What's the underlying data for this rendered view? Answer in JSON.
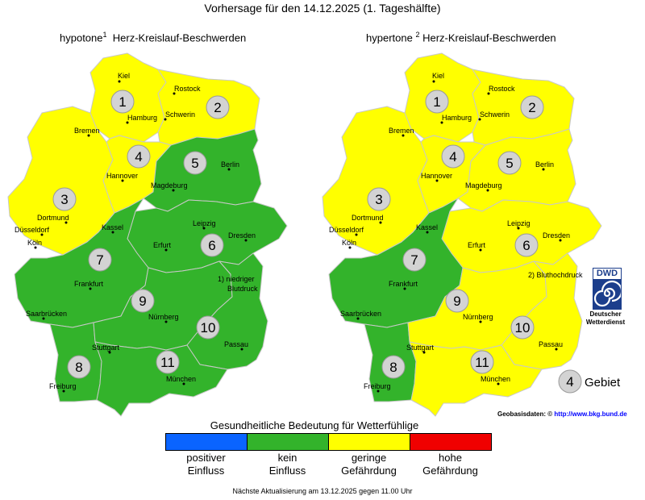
{
  "header": {
    "title": "Vorhersage für den 14.12.2025 (1. Tageshälfte)"
  },
  "maps": [
    {
      "title_prefix": "hypotone",
      "footnote": "1",
      "title_suffix": "Herz-Kreislauf-Beschwerden",
      "note_line1": "1) niedriger",
      "note_line2": "Blutdruck",
      "regions": [
        {
          "id": "1",
          "level": "geringe Gefährdung"
        },
        {
          "id": "2",
          "level": "geringe Gefährdung"
        },
        {
          "id": "3",
          "level": "geringe Gefährdung"
        },
        {
          "id": "4",
          "level": "geringe Gefährdung"
        },
        {
          "id": "5",
          "level": "kein Einfluss"
        },
        {
          "id": "6",
          "level": "kein Einfluss"
        },
        {
          "id": "7",
          "level": "kein Einfluss"
        },
        {
          "id": "8",
          "level": "kein Einfluss"
        },
        {
          "id": "9",
          "level": "kein Einfluss"
        },
        {
          "id": "10",
          "level": "kein Einfluss"
        },
        {
          "id": "11",
          "level": "kein Einfluss"
        }
      ]
    },
    {
      "title_prefix": "hypertone",
      "footnote": "2",
      "title_suffix": "Herz-Kreislauf-Beschwerden",
      "note_line1": "2) Bluthochdruck",
      "note_line2": "",
      "regions": [
        {
          "id": "1",
          "level": "geringe Gefährdung"
        },
        {
          "id": "2",
          "level": "geringe Gefährdung"
        },
        {
          "id": "3",
          "level": "geringe Gefährdung"
        },
        {
          "id": "4",
          "level": "geringe Gefährdung"
        },
        {
          "id": "5",
          "level": "geringe Gefährdung"
        },
        {
          "id": "6",
          "level": "geringe Gefährdung"
        },
        {
          "id": "7",
          "level": "kein Einfluss"
        },
        {
          "id": "8",
          "level": "kein Einfluss"
        },
        {
          "id": "9",
          "level": "geringe Gefährdung"
        },
        {
          "id": "10",
          "level": "geringe Gefährdung"
        },
        {
          "id": "11",
          "level": "geringe Gefährdung"
        }
      ]
    }
  ],
  "cities": [
    "Kiel",
    "Rostock",
    "Hamburg",
    "Schwerin",
    "Bremen",
    "Berlin",
    "Hannover",
    "Magdeburg",
    "Dortmund",
    "Düsseldorf",
    "Köln",
    "Kassel",
    "Leipzig",
    "Dresden",
    "Erfurt",
    "Frankfurt",
    "Saarbrücken",
    "Nürnberg",
    "Passau",
    "Stuttgart",
    "Freiburg",
    "München"
  ],
  "legend": {
    "title": "Gesundheitliche Bedeutung für Wetterfühlige",
    "items": [
      {
        "line1": "positiver",
        "line2": "Einfluss",
        "color": "#0a64ff"
      },
      {
        "line1": "kein",
        "line2": "Einfluss",
        "color": "#33b32b"
      },
      {
        "line1": "geringe",
        "line2": "Gefährdung",
        "color": "#ffff00"
      },
      {
        "line1": "hohe",
        "line2": "Gefährdung",
        "color": "#f00000"
      }
    ]
  },
  "gebiet_label": "Gebiet",
  "gebiet_number": "4",
  "geobasis": {
    "label": "Geobasisdaten:",
    "symbol": "©",
    "link": "http://www.bkg.bund.de"
  },
  "dwd": {
    "logo_text": "DWD",
    "name_line1": "Deutscher",
    "name_line2": "Wetterdienst"
  },
  "footer": "Nächste Aktualisierung am 13.12.2025 gegen 11.00 Uhr"
}
